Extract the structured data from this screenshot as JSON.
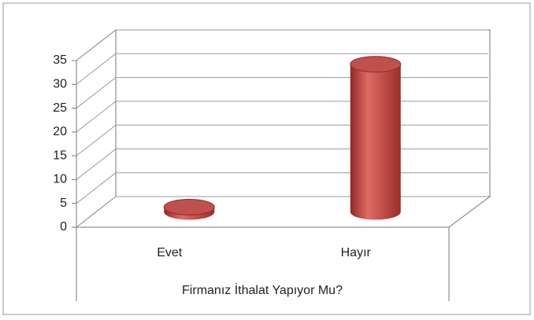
{
  "chart_data": {
    "type": "bar3d",
    "x_label": "Firmanız İthalat Yapıyor Mu?",
    "categories": [
      "Evet",
      "Hayır"
    ],
    "values": [
      1,
      31
    ],
    "color": "#c0504d",
    "ylim": [
      0,
      35
    ],
    "yticks": [
      0,
      5,
      10,
      15,
      20,
      25,
      30,
      35
    ],
    "grid": true
  }
}
